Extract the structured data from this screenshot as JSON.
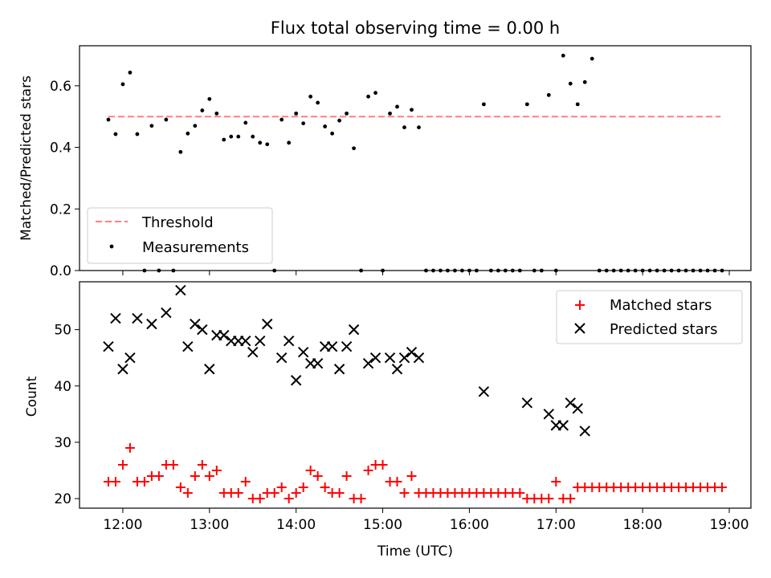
{
  "title": "Flux total observing time = 0.00 h",
  "colors": {
    "threshold": "#ff7f7f",
    "measurements": "#000000",
    "matched": "#ff0000",
    "predicted": "#000000"
  },
  "chart_data": [
    {
      "type": "scatter",
      "title": "Flux total observing time = 0.00 h",
      "xlabel": "",
      "ylabel": "Matched/Predicted stars",
      "xlim": [
        "11:30",
        "19:15"
      ],
      "ylim": [
        0,
        0.73
      ],
      "xticks": [
        "12:00",
        "13:00",
        "14:00",
        "15:00",
        "16:00",
        "17:00",
        "18:00",
        "19:00"
      ],
      "yticks": [
        "0.0",
        "0.2",
        "0.4",
        "0.6"
      ],
      "grid": false,
      "legend_position": "lower-left",
      "threshold": {
        "name": "Threshold",
        "y": 0.5,
        "x_start": "11:50",
        "x_end": "18:54"
      },
      "series": [
        {
          "name": "Measurements",
          "marker": "dot",
          "points": [
            [
              "11:50",
              0.49
            ],
            [
              "11:55",
              0.443
            ],
            [
              "12:00",
              0.605
            ],
            [
              "12:05",
              0.643
            ],
            [
              "12:10",
              0.443
            ],
            [
              "12:15",
              0.0
            ],
            [
              "12:20",
              0.47
            ],
            [
              "12:25",
              0.0
            ],
            [
              "12:30",
              0.49
            ],
            [
              "12:35",
              0.0
            ],
            [
              "12:40",
              0.385
            ],
            [
              "12:45",
              0.445
            ],
            [
              "12:50",
              0.47
            ],
            [
              "12:55",
              0.52
            ],
            [
              "13:00",
              0.557
            ],
            [
              "13:05",
              0.51
            ],
            [
              "13:10",
              0.425
            ],
            [
              "13:15",
              0.435
            ],
            [
              "13:20",
              0.435
            ],
            [
              "13:25",
              0.48
            ],
            [
              "13:30",
              0.435
            ],
            [
              "13:35",
              0.415
            ],
            [
              "13:40",
              0.41
            ],
            [
              "13:45",
              0.0
            ],
            [
              "13:50",
              0.49
            ],
            [
              "13:55",
              0.415
            ],
            [
              "14:00",
              0.51
            ],
            [
              "14:05",
              0.478
            ],
            [
              "14:10",
              0.565
            ],
            [
              "14:15",
              0.545
            ],
            [
              "14:20",
              0.468
            ],
            [
              "14:25",
              0.445
            ],
            [
              "14:30",
              0.487
            ],
            [
              "14:35",
              0.51
            ],
            [
              "14:40",
              0.397
            ],
            [
              "14:45",
              0.0
            ],
            [
              "14:50",
              0.565
            ],
            [
              "14:55",
              0.577
            ],
            [
              "15:00",
              0.0
            ],
            [
              "15:05",
              0.51
            ],
            [
              "15:10",
              0.532
            ],
            [
              "15:15",
              0.465
            ],
            [
              "15:20",
              0.522
            ],
            [
              "15:25",
              0.465
            ],
            [
              "15:30",
              0.0
            ],
            [
              "15:35",
              0.0
            ],
            [
              "15:40",
              0.0
            ],
            [
              "15:45",
              0.0
            ],
            [
              "15:50",
              0.0
            ],
            [
              "15:55",
              0.0
            ],
            [
              "16:00",
              0.0
            ],
            [
              "16:05",
              0.0
            ],
            [
              "16:10",
              0.54
            ],
            [
              "16:15",
              0.0
            ],
            [
              "16:20",
              0.0
            ],
            [
              "16:25",
              0.0
            ],
            [
              "16:30",
              0.0
            ],
            [
              "16:35",
              0.0
            ],
            [
              "16:40",
              0.54
            ],
            [
              "16:45",
              0.0
            ],
            [
              "16:50",
              0.0
            ],
            [
              "16:55",
              0.57
            ],
            [
              "17:00",
              0.0
            ],
            [
              "17:05",
              0.698
            ],
            [
              "17:10",
              0.607
            ],
            [
              "17:15",
              0.54
            ],
            [
              "17:20",
              0.612
            ],
            [
              "17:25",
              0.688
            ],
            [
              "17:30",
              0.0
            ],
            [
              "17:35",
              0.0
            ],
            [
              "17:40",
              0.0
            ],
            [
              "17:45",
              0.0
            ],
            [
              "17:50",
              0.0
            ],
            [
              "17:55",
              0.0
            ],
            [
              "18:00",
              0.0
            ],
            [
              "18:05",
              0.0
            ],
            [
              "18:10",
              0.0
            ],
            [
              "18:15",
              0.0
            ],
            [
              "18:20",
              0.0
            ],
            [
              "18:25",
              0.0
            ],
            [
              "18:30",
              0.0
            ],
            [
              "18:35",
              0.0
            ],
            [
              "18:40",
              0.0
            ],
            [
              "18:45",
              0.0
            ],
            [
              "18:50",
              0.0
            ],
            [
              "18:55",
              0.0
            ]
          ]
        }
      ]
    },
    {
      "type": "scatter",
      "title": "",
      "xlabel": "Time (UTC)",
      "ylabel": "Count",
      "xlim": [
        "11:30",
        "19:15"
      ],
      "ylim": [
        18.3,
        58.5
      ],
      "xticks": [
        "12:00",
        "13:00",
        "14:00",
        "15:00",
        "16:00",
        "17:00",
        "18:00",
        "19:00"
      ],
      "yticks": [
        "20",
        "30",
        "40",
        "50"
      ],
      "grid": false,
      "legend_position": "upper-right",
      "series": [
        {
          "name": "Matched stars",
          "marker": "plus",
          "points": [
            [
              "11:50",
              23
            ],
            [
              "11:55",
              23
            ],
            [
              "12:00",
              26
            ],
            [
              "12:05",
              29
            ],
            [
              "12:10",
              23
            ],
            [
              "12:15",
              23
            ],
            [
              "12:20",
              24
            ],
            [
              "12:25",
              24
            ],
            [
              "12:30",
              26
            ],
            [
              "12:35",
              26
            ],
            [
              "12:40",
              22
            ],
            [
              "12:45",
              21
            ],
            [
              "12:50",
              24
            ],
            [
              "12:55",
              26
            ],
            [
              "13:00",
              24
            ],
            [
              "13:05",
              25
            ],
            [
              "13:10",
              21
            ],
            [
              "13:15",
              21
            ],
            [
              "13:20",
              21
            ],
            [
              "13:25",
              23
            ],
            [
              "13:30",
              20
            ],
            [
              "13:35",
              20
            ],
            [
              "13:40",
              21
            ],
            [
              "13:45",
              21
            ],
            [
              "13:50",
              22
            ],
            [
              "13:55",
              20
            ],
            [
              "14:00",
              21
            ],
            [
              "14:05",
              22
            ],
            [
              "14:10",
              25
            ],
            [
              "14:15",
              24
            ],
            [
              "14:20",
              22
            ],
            [
              "14:25",
              21
            ],
            [
              "14:30",
              21
            ],
            [
              "14:35",
              24
            ],
            [
              "14:40",
              20
            ],
            [
              "14:45",
              20
            ],
            [
              "14:50",
              25
            ],
            [
              "14:55",
              26
            ],
            [
              "15:00",
              26
            ],
            [
              "15:05",
              23
            ],
            [
              "15:10",
              23
            ],
            [
              "15:15",
              21
            ],
            [
              "15:20",
              24
            ],
            [
              "15:25",
              21
            ],
            [
              "15:30",
              21
            ],
            [
              "15:35",
              21
            ],
            [
              "15:40",
              21
            ],
            [
              "15:45",
              21
            ],
            [
              "15:50",
              21
            ],
            [
              "15:55",
              21
            ],
            [
              "16:00",
              21
            ],
            [
              "16:05",
              21
            ],
            [
              "16:10",
              21
            ],
            [
              "16:15",
              21
            ],
            [
              "16:20",
              21
            ],
            [
              "16:25",
              21
            ],
            [
              "16:30",
              21
            ],
            [
              "16:35",
              21
            ],
            [
              "16:40",
              20
            ],
            [
              "16:45",
              20
            ],
            [
              "16:50",
              20
            ],
            [
              "16:55",
              20
            ],
            [
              "17:00",
              23
            ],
            [
              "17:05",
              20
            ],
            [
              "17:10",
              20
            ],
            [
              "17:15",
              22
            ],
            [
              "17:20",
              22
            ],
            [
              "17:25",
              22
            ],
            [
              "17:30",
              22
            ],
            [
              "17:35",
              22
            ],
            [
              "17:40",
              22
            ],
            [
              "17:45",
              22
            ],
            [
              "17:50",
              22
            ],
            [
              "17:55",
              22
            ],
            [
              "18:00",
              22
            ],
            [
              "18:05",
              22
            ],
            [
              "18:10",
              22
            ],
            [
              "18:15",
              22
            ],
            [
              "18:20",
              22
            ],
            [
              "18:25",
              22
            ],
            [
              "18:30",
              22
            ],
            [
              "18:35",
              22
            ],
            [
              "18:40",
              22
            ],
            [
              "18:45",
              22
            ],
            [
              "18:50",
              22
            ],
            [
              "18:55",
              22
            ]
          ]
        },
        {
          "name": "Predicted stars",
          "marker": "x",
          "points": [
            [
              "11:50",
              47
            ],
            [
              "11:55",
              52
            ],
            [
              "12:00",
              43
            ],
            [
              "12:05",
              45
            ],
            [
              "12:10",
              52
            ],
            [
              "12:20",
              51
            ],
            [
              "12:30",
              53
            ],
            [
              "12:40",
              57
            ],
            [
              "12:45",
              47
            ],
            [
              "12:50",
              51
            ],
            [
              "12:55",
              50
            ],
            [
              "13:00",
              43
            ],
            [
              "13:05",
              49
            ],
            [
              "13:10",
              49
            ],
            [
              "13:15",
              48
            ],
            [
              "13:20",
              48
            ],
            [
              "13:25",
              48
            ],
            [
              "13:30",
              46
            ],
            [
              "13:35",
              48
            ],
            [
              "13:40",
              51
            ],
            [
              "13:50",
              45
            ],
            [
              "13:55",
              48
            ],
            [
              "14:00",
              41
            ],
            [
              "14:05",
              46
            ],
            [
              "14:10",
              44
            ],
            [
              "14:15",
              44
            ],
            [
              "14:20",
              47
            ],
            [
              "14:25",
              47
            ],
            [
              "14:30",
              43
            ],
            [
              "14:35",
              47
            ],
            [
              "14:40",
              50
            ],
            [
              "14:50",
              44
            ],
            [
              "14:55",
              45
            ],
            [
              "15:05",
              45
            ],
            [
              "15:10",
              43
            ],
            [
              "15:15",
              45
            ],
            [
              "15:20",
              46
            ],
            [
              "15:25",
              45
            ],
            [
              "16:10",
              39
            ],
            [
              "16:40",
              37
            ],
            [
              "16:55",
              35
            ],
            [
              "17:00",
              33
            ],
            [
              "17:05",
              33
            ],
            [
              "17:10",
              37
            ],
            [
              "17:15",
              36
            ],
            [
              "17:20",
              32
            ]
          ]
        }
      ]
    }
  ]
}
